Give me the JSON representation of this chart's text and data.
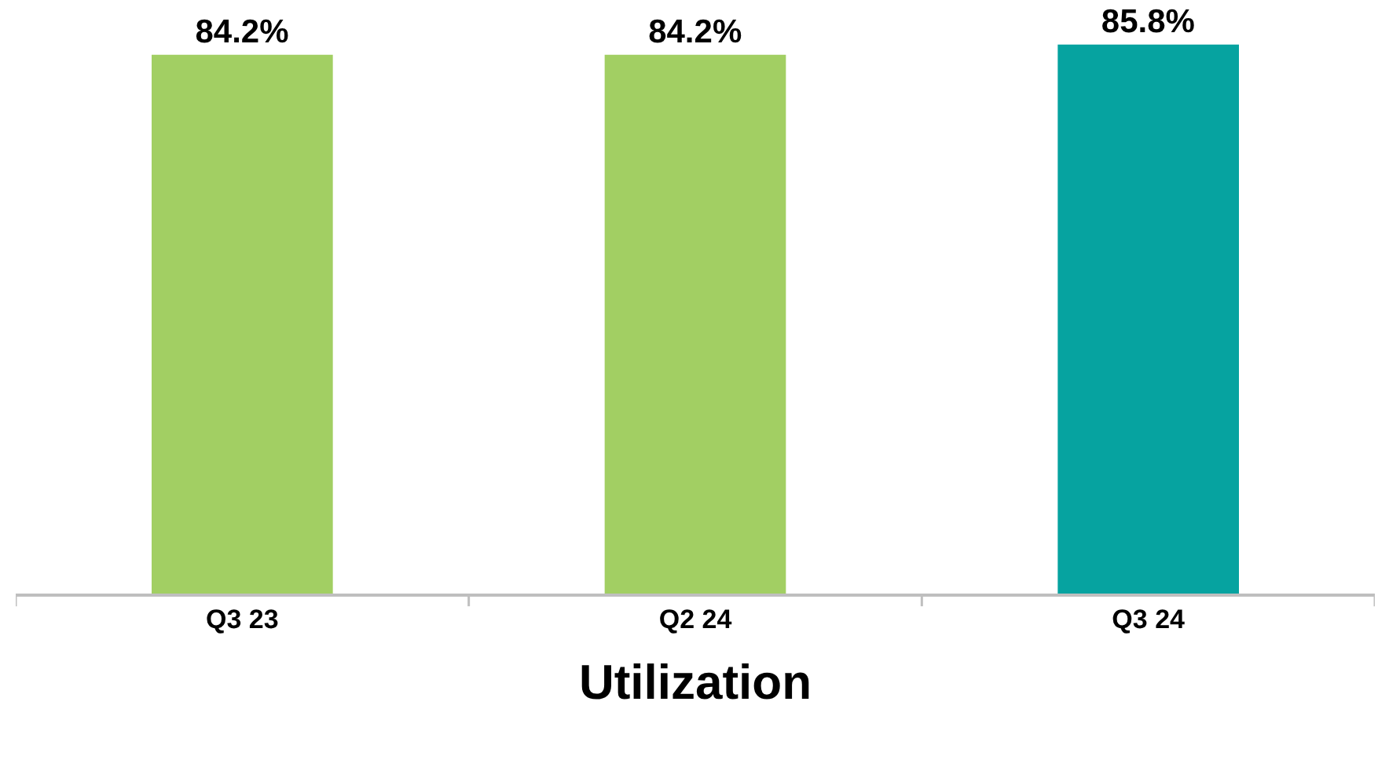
{
  "chart_data": {
    "type": "bar",
    "xlabel": "Utilization",
    "categories": [
      "Q3 23",
      "Q2 24",
      "Q3 24"
    ],
    "values": [
      84.2,
      84.2,
      85.8
    ],
    "colors": [
      "#a2cf63",
      "#a2cf63",
      "#06a3a0"
    ],
    "value_labels": [
      "84.2%",
      "84.2%",
      "85.8%"
    ],
    "tick_labels": "x",
    "legend": false
  }
}
